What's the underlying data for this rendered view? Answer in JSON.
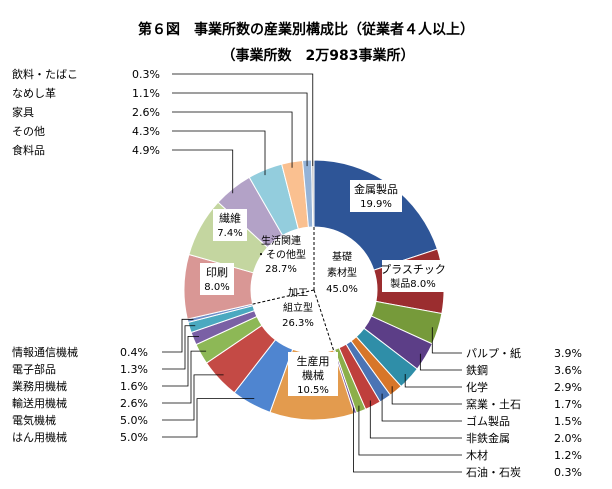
{
  "chart_data": {
    "type": "pie",
    "title": "第６図　事業所数の産業別構成比（従業者４人以上）",
    "subtitle": "（事業所数　2万983事業所）",
    "categories": [
      "金属製品",
      "プラスチック製品",
      "パルプ・紙",
      "鉄鋼",
      "化学",
      "窯業・土石",
      "ゴム製品",
      "非鉄金属",
      "木材",
      "石油・石炭",
      "生産用機械",
      "はん用機械",
      "電気機械",
      "輸送用機械",
      "業務用機械",
      "電子部品",
      "情報通信機械",
      "印刷",
      "繊維",
      "食料品",
      "その他",
      "家具",
      "なめし革",
      "飲料・たばこ"
    ],
    "values": [
      19.9,
      8.0,
      3.9,
      3.6,
      2.9,
      1.7,
      1.5,
      2.0,
      1.2,
      0.3,
      10.5,
      5.0,
      5.0,
      2.6,
      1.6,
      1.3,
      0.4,
      8.0,
      7.4,
      4.9,
      4.3,
      2.6,
      1.1,
      0.3
    ],
    "colors": [
      "#2E5597",
      "#9B2D2F",
      "#769A3A",
      "#5C3E87",
      "#2F8EA8",
      "#D77629",
      "#4A74B5",
      "#BF3F3C",
      "#8CAF4A",
      "#6E4F96",
      "#E39B4E",
      "#4F85D0",
      "#C44A45",
      "#8DB856",
      "#7A60A5",
      "#4BA9C0",
      "#6F8FC8",
      "#D99795",
      "#C4D6A0",
      "#B3A2C7",
      "#93CDDD",
      "#FAC090",
      "#95B3D7",
      "#C0C0C0"
    ],
    "groups": [
      {
        "name": "基礎素材型",
        "value": 45.0
      },
      {
        "name": "加工組立型",
        "value": 26.3
      },
      {
        "name": "生活関連・その他型",
        "value": 28.7
      }
    ],
    "inner_labels": [
      {
        "name": "金属製品",
        "value": "19.9%"
      },
      {
        "name": "プラスチック製品",
        "value": "8.0%"
      },
      {
        "name": "生産用機械",
        "value": "10.5%"
      },
      {
        "name": "印刷",
        "value": "8.0%"
      },
      {
        "name": "繊維",
        "value": "7.4%"
      }
    ],
    "legend_left_top": [
      {
        "name": "飲料・たばこ",
        "value": "0.3%"
      },
      {
        "name": "なめし革",
        "value": "1.1%"
      },
      {
        "name": "家具",
        "value": "2.6%"
      },
      {
        "name": "その他",
        "value": "4.3%"
      },
      {
        "name": "食料品",
        "value": "4.9%"
      }
    ],
    "legend_left_bottom": [
      {
        "name": "情報通信機械",
        "value": "0.4%"
      },
      {
        "name": "電子部品",
        "value": "1.3%"
      },
      {
        "name": "業務用機械",
        "value": "1.6%"
      },
      {
        "name": "輸送用機械",
        "value": "2.6%"
      },
      {
        "name": "電気機械",
        "value": "5.0%"
      },
      {
        "name": "はん用機械",
        "value": "5.0%"
      }
    ],
    "legend_right": [
      {
        "name": "パルプ・紙",
        "value": "3.9%"
      },
      {
        "name": "鉄鋼",
        "value": "3.6%"
      },
      {
        "name": "化学",
        "value": "2.9%"
      },
      {
        "name": "窯業・土石",
        "value": "1.7%"
      },
      {
        "name": "ゴム製品",
        "value": "1.5%"
      },
      {
        "name": "非鉄金属",
        "value": "2.0%"
      },
      {
        "name": "木材",
        "value": "1.2%"
      },
      {
        "name": "石油・石炭",
        "value": "0.3%"
      }
    ]
  }
}
